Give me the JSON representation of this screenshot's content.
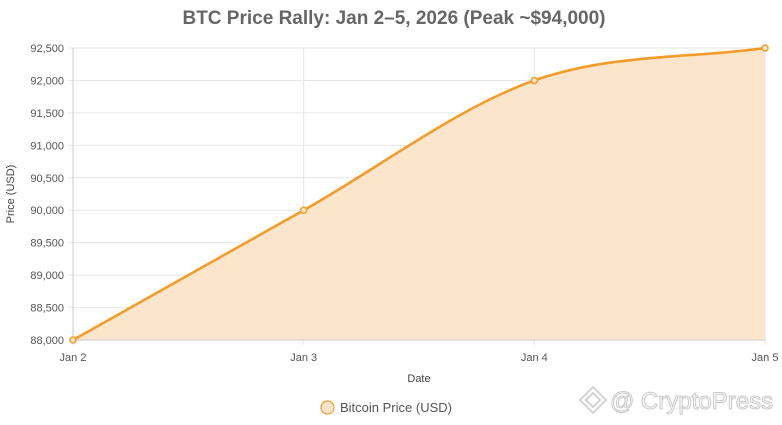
{
  "chart_data": {
    "type": "area",
    "title": "BTC Price Rally: Jan 2–5, 2026 (Peak ~$94,000)",
    "xlabel": "Date",
    "ylabel": "Price (USD)",
    "categories": [
      "Jan 2",
      "Jan 3",
      "Jan 4",
      "Jan 5"
    ],
    "series": [
      {
        "name": "Bitcoin Price (USD)",
        "values": [
          88000,
          90000,
          92000,
          92500
        ]
      }
    ],
    "ylim": [
      88000,
      92500
    ],
    "yticks": [
      88000,
      88500,
      89000,
      89500,
      90000,
      90500,
      91000,
      91500,
      92000,
      92500
    ],
    "ytick_labels": [
      "88,000",
      "88,500",
      "89,000",
      "89,500",
      "90,000",
      "90,500",
      "91,000",
      "91,500",
      "92,000",
      "92,500"
    ],
    "grid": true,
    "legend_position": "bottom-center",
    "colors": {
      "line": "#f39c2a",
      "fill": "#fbe5cb",
      "grid": "#e6e6e6",
      "axis": "#cccccc"
    }
  },
  "watermark": {
    "text": "@ CryptoPress",
    "icon": "binance-diamond-logo"
  }
}
